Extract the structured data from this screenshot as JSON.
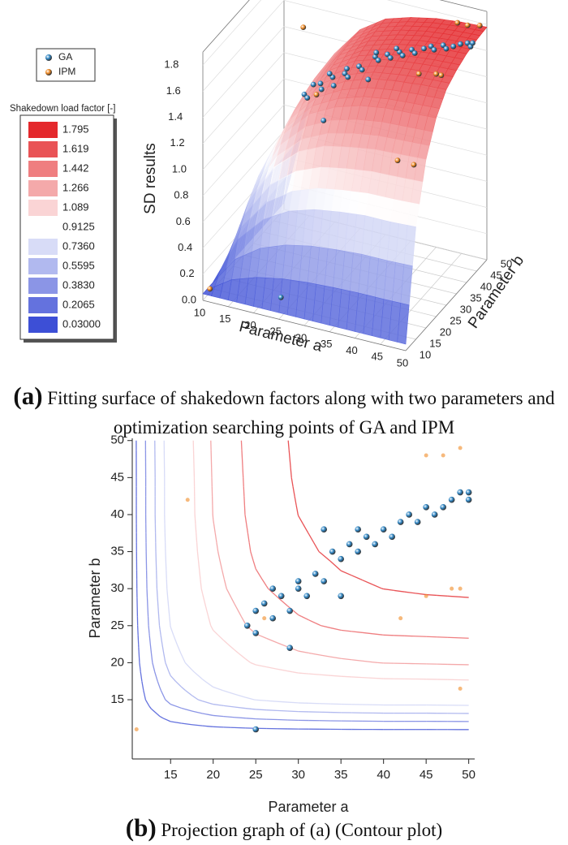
{
  "chart_data": [
    {
      "type": "surface3d",
      "xlabel": "Parameter a",
      "ylabel": "Parameter b",
      "zlabel": "SD results",
      "xlim": [
        10,
        50
      ],
      "ylim": [
        10,
        50
      ],
      "zlim": [
        0,
        1.9
      ],
      "xticks": [
        10,
        15,
        20,
        25,
        30,
        35,
        40,
        45,
        50
      ],
      "yticks": [
        10,
        15,
        20,
        25,
        30,
        35,
        40,
        45,
        50
      ],
      "zticks": [
        {
          "value": 0,
          "label": "0.0"
        },
        0.2,
        0.4,
        0.6,
        0.8,
        {
          "value": 1,
          "label": "1.0"
        },
        1.2,
        1.4,
        1.6,
        1.8
      ],
      "colormap": [
        "#3d4fd6",
        "#ffffff",
        "#e4282c"
      ],
      "colorbar": {
        "title": "Shakedown load factor [-]",
        "levels": [
          1.795,
          1.619,
          1.442,
          1.266,
          1.089,
          0.9125,
          {
            "value": 0.736,
            "label": "0.7360"
          },
          0.5595,
          {
            "value": 0.383,
            "label": "0.3830"
          },
          0.2065,
          {
            "value": 0.03,
            "label": "0.03000"
          }
        ]
      },
      "surface": {
        "x": [
          10,
          15,
          20,
          25,
          30,
          35,
          40,
          45,
          50
        ],
        "y": [
          10,
          15,
          20,
          25,
          30,
          35,
          40,
          45,
          50
        ],
        "z": [
          [
            0.05,
            0.05,
            0.05,
            0.05,
            0.05,
            0.05,
            0.05,
            0.05,
            0.05
          ],
          [
            0.05,
            0.43,
            0.63,
            0.74,
            0.8,
            0.83,
            0.85,
            0.85,
            0.86
          ],
          [
            0.05,
            0.63,
            0.94,
            1.11,
            1.2,
            1.24,
            1.27,
            1.28,
            1.29
          ],
          [
            0.05,
            0.74,
            1.11,
            1.31,
            1.41,
            1.47,
            1.5,
            1.51,
            1.52
          ],
          [
            0.05,
            0.8,
            1.2,
            1.41,
            1.52,
            1.59,
            1.62,
            1.64,
            1.65
          ],
          [
            0.05,
            0.83,
            1.24,
            1.47,
            1.59,
            1.65,
            1.68,
            1.7,
            1.71
          ],
          [
            0.05,
            0.85,
            1.27,
            1.5,
            1.62,
            1.68,
            1.72,
            1.74,
            1.75
          ],
          [
            0.05,
            0.85,
            1.28,
            1.51,
            1.64,
            1.7,
            1.74,
            1.76,
            1.77
          ],
          [
            0.05,
            0.86,
            1.29,
            1.52,
            1.65,
            1.71,
            1.75,
            1.77,
            1.78
          ]
        ]
      },
      "series": [
        {
          "name": "GA",
          "color": "#2f86c4",
          "x": [
            24,
            25,
            26,
            25,
            27,
            28,
            27,
            29,
            30,
            30,
            31,
            32,
            33,
            34,
            35,
            36,
            37,
            38,
            37,
            39,
            40,
            41,
            42,
            43,
            44,
            45,
            46,
            47,
            48,
            49,
            50,
            50,
            25,
            29,
            35,
            33
          ],
          "y": [
            25,
            27,
            28,
            24,
            26,
            29,
            30,
            27,
            30,
            31,
            29,
            32,
            31,
            35,
            34,
            36,
            35,
            37,
            38,
            36,
            38,
            37,
            39,
            40,
            39,
            41,
            40,
            41,
            42,
            43,
            42,
            43,
            11,
            22,
            29,
            38
          ],
          "z": [
            1.45,
            1.5,
            1.5,
            1.45,
            1.5,
            1.55,
            1.55,
            1.53,
            1.58,
            1.6,
            1.58,
            1.62,
            1.62,
            1.66,
            1.66,
            1.68,
            1.68,
            1.7,
            1.7,
            1.7,
            1.72,
            1.72,
            1.73,
            1.74,
            1.74,
            1.75,
            1.75,
            1.76,
            1.77,
            1.77,
            1.77,
            1.78,
            0.15,
            1.35,
            1.6,
            1.63
          ]
        },
        {
          "name": "IPM",
          "color": "#f08a24",
          "x": [
            49,
            45,
            47,
            17,
            49,
            48,
            45,
            42,
            26,
            49,
            11
          ],
          "y": [
            49,
            48,
            48,
            42,
            30,
            30,
            29,
            26,
            26,
            16.5,
            11
          ],
          "z": [
            1.8,
            1.8,
            1.8,
            1.6,
            1.75,
            1.75,
            1.74,
            1.1,
            1.45,
            1.3,
            0.08
          ]
        }
      ],
      "caption_label": "(a)",
      "caption": "Fitting surface of shakedown factors along with two parameters and optimization searching points of GA and IPM"
    },
    {
      "type": "contour",
      "xlabel": "Parameter a",
      "ylabel": "Parameter b",
      "xlim": [
        10.5,
        50.7
      ],
      "ylim": [
        7,
        50.3
      ],
      "xticks": [
        15,
        20,
        25,
        30,
        35,
        40,
        45,
        50
      ],
      "yticks": [
        15,
        20,
        25,
        30,
        35,
        40,
        45,
        50
      ],
      "caption_label": "(b)",
      "caption": "Projection graph of (a) (Contour plot)"
    }
  ]
}
